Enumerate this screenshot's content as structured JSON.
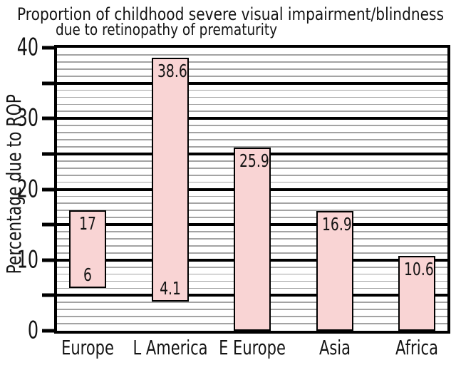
{
  "title": {
    "line1": "Proportion of childhood severe visual impairment/blindness",
    "line2": "due to retinopathy of prematurity"
  },
  "y_axis": {
    "label": "Percentage due to ROP",
    "min": 0,
    "max": 40,
    "major_step": 5,
    "minor_step": 1,
    "tick_label_step": 10,
    "tick_labels": [
      "0",
      "10",
      "20",
      "30",
      "40"
    ]
  },
  "colors": {
    "background": "#ffffff",
    "bar_fill": "#f9d4d4",
    "bar_border": "#000000",
    "major_grid": "#000000",
    "minor_grid": "#a3a3a3",
    "text": "#141414"
  },
  "chart_data": {
    "type": "bar",
    "subtype": "floating-range-bars",
    "title": "Proportion of childhood severe visual impairment/blindness due to retinopathy of prematurity",
    "xlabel": "",
    "ylabel": "Percentage due to ROP",
    "ylim": [
      0,
      40
    ],
    "grid": {
      "minor_every": 1,
      "major_every": 5
    },
    "legend": "none",
    "categories": [
      "Europe",
      "L America",
      "E Europe",
      "Asia",
      "Africa"
    ],
    "bars": [
      {
        "category": "Europe",
        "from": 6,
        "to": 17,
        "label_top": "17",
        "label_bottom": "6"
      },
      {
        "category": "L America",
        "from": 4.1,
        "to": 38.6,
        "label_top": "38.6",
        "label_bottom": "4.1"
      },
      {
        "category": "E Europe",
        "from": 0,
        "to": 25.9,
        "label_top": "25.9",
        "label_bottom": null
      },
      {
        "category": "Asia",
        "from": 0,
        "to": 16.9,
        "label_top": "16.9",
        "label_bottom": null
      },
      {
        "category": "Africa",
        "from": 0,
        "to": 10.6,
        "label_top": "10.6",
        "label_bottom": null
      }
    ]
  }
}
